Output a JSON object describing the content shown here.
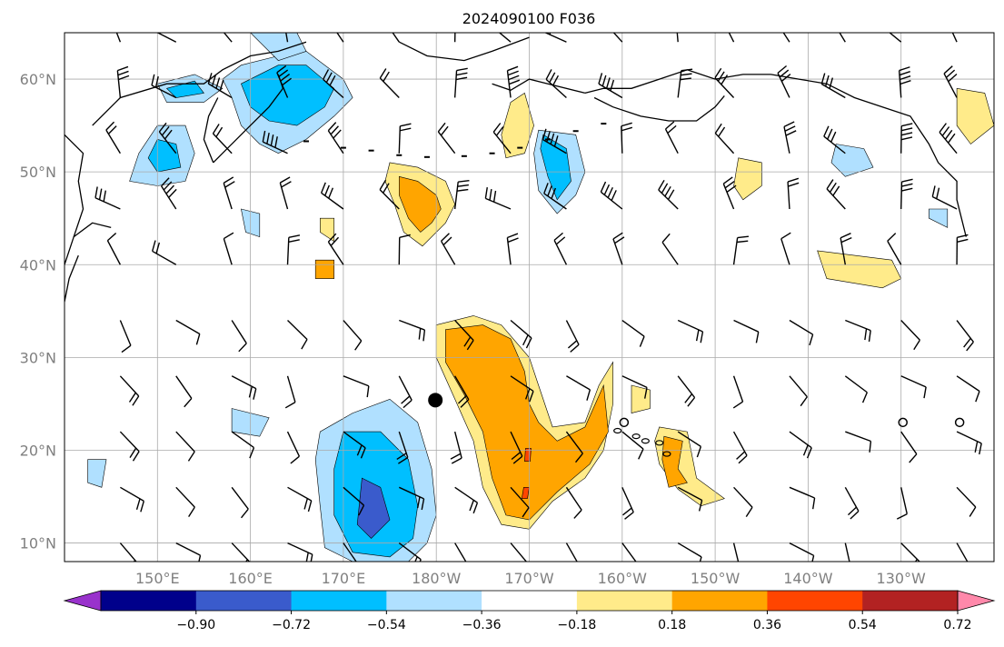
{
  "title": "2024090100 F036",
  "map": {
    "lon_ticks": [
      {
        "lon": 150,
        "label": "150°E"
      },
      {
        "lon": 160,
        "label": "160°E"
      },
      {
        "lon": 170,
        "label": "170°E"
      },
      {
        "lon": 180,
        "label": "180°W"
      },
      {
        "lon": 190,
        "label": "170°W"
      },
      {
        "lon": 200,
        "label": "160°W"
      },
      {
        "lon": 210,
        "label": "150°W"
      },
      {
        "lon": 220,
        "label": "140°W"
      },
      {
        "lon": 230,
        "label": "130°W"
      }
    ],
    "lat_ticks": [
      {
        "lat": 10,
        "label": "10°N"
      },
      {
        "lat": 20,
        "label": "20°N"
      },
      {
        "lat": 30,
        "label": "30°N"
      },
      {
        "lat": 40,
        "label": "40°N"
      },
      {
        "lat": 50,
        "label": "50°N"
      },
      {
        "lat": 60,
        "label": "60°N"
      }
    ],
    "extent": {
      "lon_min": 140,
      "lon_max": 240,
      "lat_min": 8,
      "lat_max": 65
    },
    "grid": true,
    "storm_center": {
      "lon": 179.9,
      "lat": 25.4
    }
  },
  "colorbar": {
    "levels": [
      -0.9,
      -0.72,
      -0.54,
      -0.36,
      -0.18,
      0.18,
      0.36,
      0.54,
      0.72,
      0.9
    ],
    "labels": [
      "−0.90",
      "−0.72",
      "−0.54",
      "−0.36",
      "−0.18",
      "0.18",
      "0.36",
      "0.54",
      "0.72",
      "0.90"
    ],
    "colors": [
      "#9932cc",
      "#00008b",
      "#3a5bcc",
      "#00bfff",
      "#b0e0ff",
      "#ffffff",
      "#ffeb8a",
      "#ffa500",
      "#ff4500",
      "#b22222",
      "#ff88aa"
    ],
    "extend": "both"
  },
  "chart_data": {
    "type": "map",
    "title": "2024090100 F036",
    "colorbar_levels": [
      -0.9,
      -0.72,
      -0.54,
      -0.36,
      -0.18,
      0.18,
      0.36,
      0.54,
      0.72,
      0.9
    ],
    "regions": [
      {
        "id": "neg-bering-kamchatka",
        "level": -0.36,
        "points": [
          [
            163,
            62.5
          ],
          [
            166,
            63
          ],
          [
            170,
            60
          ],
          [
            171,
            58
          ],
          [
            169,
            56
          ],
          [
            166,
            53.5
          ],
          [
            163,
            52
          ],
          [
            161,
            53
          ],
          [
            159,
            55
          ],
          [
            158,
            58
          ],
          [
            157,
            60
          ],
          [
            159,
            61.5
          ]
        ]
      },
      {
        "id": "neg-bering-kamchatka-core",
        "level": -0.54,
        "points": [
          [
            163,
            61.5
          ],
          [
            166,
            61.5
          ],
          [
            169,
            59
          ],
          [
            168,
            57
          ],
          [
            165,
            55
          ],
          [
            162,
            55.5
          ],
          [
            160,
            57
          ],
          [
            159,
            59.5
          ]
        ]
      },
      {
        "id": "neg-top-strip",
        "level": -0.36,
        "points": [
          [
            160,
            65
          ],
          [
            165,
            65
          ],
          [
            166,
            63
          ],
          [
            163,
            62
          ]
        ]
      },
      {
        "id": "neg-west-kamchatka",
        "level": -0.36,
        "points": [
          [
            150,
            55
          ],
          [
            153,
            55
          ],
          [
            154,
            52
          ],
          [
            153,
            49
          ],
          [
            150,
            48.5
          ],
          [
            147,
            49
          ],
          [
            148,
            52
          ]
        ]
      },
      {
        "id": "neg-west-kamchatka-core",
        "level": -0.54,
        "points": [
          [
            150,
            53.5
          ],
          [
            152,
            53
          ],
          [
            152.5,
            50.5
          ],
          [
            150,
            50
          ],
          [
            149,
            51.5
          ]
        ]
      },
      {
        "id": "neg-okhotsk",
        "level": -0.36,
        "points": [
          [
            150,
            59.5
          ],
          [
            154,
            60.5
          ],
          [
            157,
            59
          ],
          [
            155,
            57.5
          ],
          [
            151,
            57.5
          ]
        ]
      },
      {
        "id": "neg-okhotsk-core",
        "level": -0.54,
        "points": [
          [
            151,
            59
          ],
          [
            154,
            59.8
          ],
          [
            155,
            58.5
          ],
          [
            152,
            58
          ]
        ]
      },
      {
        "id": "neg-aleutian-west",
        "level": -0.36,
        "points": [
          [
            191,
            54.5
          ],
          [
            195,
            54
          ],
          [
            196,
            50
          ],
          [
            195,
            47.5
          ],
          [
            193,
            45.5
          ],
          [
            191,
            48
          ],
          [
            190.5,
            52
          ]
        ]
      },
      {
        "id": "neg-aleutian-west-core",
        "level": -0.54,
        "points": [
          [
            191.5,
            54
          ],
          [
            194,
            52.5
          ],
          [
            194.5,
            49
          ],
          [
            193,
            47
          ],
          [
            192,
            49.5
          ],
          [
            191.2,
            52.5
          ]
        ]
      },
      {
        "id": "neg-alaska",
        "level": -0.36,
        "points": [
          [
            223,
            53
          ],
          [
            226,
            52.5
          ],
          [
            227,
            50.5
          ],
          [
            224,
            49.5
          ],
          [
            222.5,
            51
          ]
        ]
      },
      {
        "id": "neg-gulf-small",
        "level": -0.36,
        "points": [
          [
            233,
            46
          ],
          [
            235,
            46
          ],
          [
            235,
            44
          ],
          [
            233,
            45
          ]
        ]
      },
      {
        "id": "neg-north-pacific",
        "level": -0.36,
        "points": [
          [
            159,
            46
          ],
          [
            161,
            45.5
          ],
          [
            161,
            43
          ],
          [
            159.5,
            43.5
          ]
        ]
      },
      {
        "id": "neg-tropical",
        "level": -0.36,
        "points": [
          [
            171,
            24
          ],
          [
            175,
            25.5
          ],
          [
            178,
            23
          ],
          [
            179.5,
            18
          ],
          [
            180,
            13
          ],
          [
            179,
            10
          ],
          [
            177,
            8
          ],
          [
            171,
            8
          ],
          [
            168,
            9.5
          ],
          [
            167.5,
            14
          ],
          [
            167,
            19
          ],
          [
            167.5,
            22
          ]
        ]
      },
      {
        "id": "neg-tropical-core",
        "level": -0.54,
        "points": [
          [
            170,
            22
          ],
          [
            174,
            22
          ],
          [
            177,
            19
          ],
          [
            178,
            14
          ],
          [
            177.5,
            10.5
          ],
          [
            175,
            8.5
          ],
          [
            171,
            9
          ],
          [
            169,
            13
          ],
          [
            169,
            18
          ]
        ]
      },
      {
        "id": "neg-tropical-deep",
        "level": -0.72,
        "points": [
          [
            172,
            17
          ],
          [
            174,
            16
          ],
          [
            175,
            12.5
          ],
          [
            173,
            10.5
          ],
          [
            171.5,
            12
          ]
        ]
      },
      {
        "id": "neg-west-small",
        "level": -0.36,
        "points": [
          [
            142.5,
            19
          ],
          [
            144.5,
            19
          ],
          [
            144,
            16
          ],
          [
            142.5,
            16.5
          ]
        ]
      },
      {
        "id": "neg-mid-small",
        "level": -0.36,
        "points": [
          [
            158,
            24.5
          ],
          [
            162,
            23.5
          ],
          [
            161,
            21.5
          ],
          [
            158,
            22
          ]
        ]
      },
      {
        "id": "pos-tropical",
        "level": 0.18,
        "points": [
          [
            180,
            33.5
          ],
          [
            184,
            34.5
          ],
          [
            187,
            33.5
          ],
          [
            190,
            30
          ],
          [
            191,
            27
          ],
          [
            192.5,
            22.5
          ],
          [
            196,
            23
          ],
          [
            197.5,
            27
          ],
          [
            199,
            29.5
          ],
          [
            199,
            25
          ],
          [
            198,
            20
          ],
          [
            196,
            17
          ],
          [
            192.5,
            14.5
          ],
          [
            190,
            11.5
          ],
          [
            187,
            12
          ],
          [
            185,
            16
          ],
          [
            184,
            21
          ],
          [
            182,
            25.5
          ],
          [
            180,
            30
          ]
        ]
      },
      {
        "id": "pos-tropical-core",
        "level": 0.36,
        "points": [
          [
            181,
            33
          ],
          [
            185,
            33.5
          ],
          [
            188,
            32
          ],
          [
            189.5,
            28.5
          ],
          [
            190,
            25
          ],
          [
            191,
            23
          ],
          [
            193,
            21
          ],
          [
            196,
            22.5
          ],
          [
            198,
            27
          ],
          [
            198.5,
            22
          ],
          [
            196.5,
            18.5
          ],
          [
            193,
            15.5
          ],
          [
            190,
            12.5
          ],
          [
            187.5,
            13
          ],
          [
            186,
            17
          ],
          [
            185,
            22
          ],
          [
            183,
            26
          ],
          [
            181,
            29.5
          ]
        ]
      },
      {
        "id": "pos-tropical-red-a",
        "level": 0.54,
        "points": [
          [
            189.6,
            20.2
          ],
          [
            190.2,
            20.2
          ],
          [
            190.1,
            18.8
          ],
          [
            189.5,
            18.8
          ]
        ]
      },
      {
        "id": "pos-tropical-red-b",
        "level": 0.54,
        "points": [
          [
            189.4,
            16
          ],
          [
            190,
            16
          ],
          [
            189.8,
            14.8
          ],
          [
            189.2,
            14.8
          ]
        ]
      },
      {
        "id": "pos-north-lobe",
        "level": 0.18,
        "points": [
          [
            175,
            51
          ],
          [
            178,
            50.5
          ],
          [
            181,
            49
          ],
          [
            182,
            46.5
          ],
          [
            181,
            44.5
          ],
          [
            178.5,
            42
          ],
          [
            176.5,
            43.5
          ],
          [
            175.5,
            46.5
          ],
          [
            174.5,
            49
          ]
        ]
      },
      {
        "id": "pos-north-lobe-core",
        "level": 0.36,
        "points": [
          [
            176,
            49.5
          ],
          [
            178,
            49
          ],
          [
            180,
            47.5
          ],
          [
            180.5,
            46
          ],
          [
            179.5,
            44.5
          ],
          [
            178.3,
            43.5
          ],
          [
            177,
            45
          ],
          [
            176,
            47.5
          ]
        ]
      },
      {
        "id": "pos-north-small",
        "level": 0.18,
        "points": [
          [
            189.5,
            58.5
          ],
          [
            188,
            57.5
          ],
          [
            187,
            54
          ],
          [
            187.5,
            51.5
          ],
          [
            189.5,
            52
          ],
          [
            190.5,
            55
          ]
        ]
      },
      {
        "id": "pos-hawaii",
        "level": 0.18,
        "points": [
          [
            204,
            22.5
          ],
          [
            207,
            22
          ],
          [
            207.5,
            19.5
          ],
          [
            208,
            17
          ],
          [
            211,
            14.8
          ],
          [
            208.5,
            14
          ],
          [
            206,
            15.8
          ],
          [
            204,
            18.5
          ],
          [
            203.5,
            21
          ]
        ]
      },
      {
        "id": "pos-hawaii-core",
        "level": 0.36,
        "points": [
          [
            204.5,
            21.5
          ],
          [
            206.5,
            21
          ],
          [
            206,
            18
          ],
          [
            207,
            16.5
          ],
          [
            205,
            16
          ],
          [
            204.3,
            19
          ]
        ]
      },
      {
        "id": "pos-northeast-gulf",
        "level": 0.18,
        "points": [
          [
            212.5,
            51.5
          ],
          [
            215,
            51
          ],
          [
            215,
            48.5
          ],
          [
            213,
            47
          ],
          [
            212,
            48.5
          ]
        ]
      },
      {
        "id": "pos-gulf-west",
        "level": 0.18,
        "points": [
          [
            201,
            27
          ],
          [
            203,
            26.5
          ],
          [
            203,
            24.5
          ],
          [
            201,
            24
          ]
        ]
      },
      {
        "id": "pos-subtropic-east",
        "level": 0.18,
        "points": [
          [
            221,
            41.5
          ],
          [
            229,
            40.5
          ],
          [
            230,
            38.5
          ],
          [
            228,
            37.5
          ],
          [
            222,
            38.5
          ]
        ]
      },
      {
        "id": "pos-alaska-east",
        "level": 0.18,
        "points": [
          [
            236,
            59
          ],
          [
            239,
            58.5
          ],
          [
            240,
            55
          ],
          [
            237.5,
            53
          ],
          [
            236,
            55
          ]
        ]
      },
      {
        "id": "pos-mid-small",
        "level": 0.18,
        "points": [
          [
            167.5,
            45
          ],
          [
            169,
            45
          ],
          [
            169,
            42.5
          ],
          [
            167.5,
            43.5
          ]
        ]
      },
      {
        "id": "pos-mid-orange",
        "level": 0.36,
        "points": [
          [
            167,
            40.5
          ],
          [
            169,
            40.5
          ],
          [
            169,
            38.5
          ],
          [
            167,
            38.5
          ]
        ]
      }
    ],
    "wind_barbs": {
      "spacing_deg": 6,
      "lon_start": 146,
      "lat_start": 10
    }
  }
}
